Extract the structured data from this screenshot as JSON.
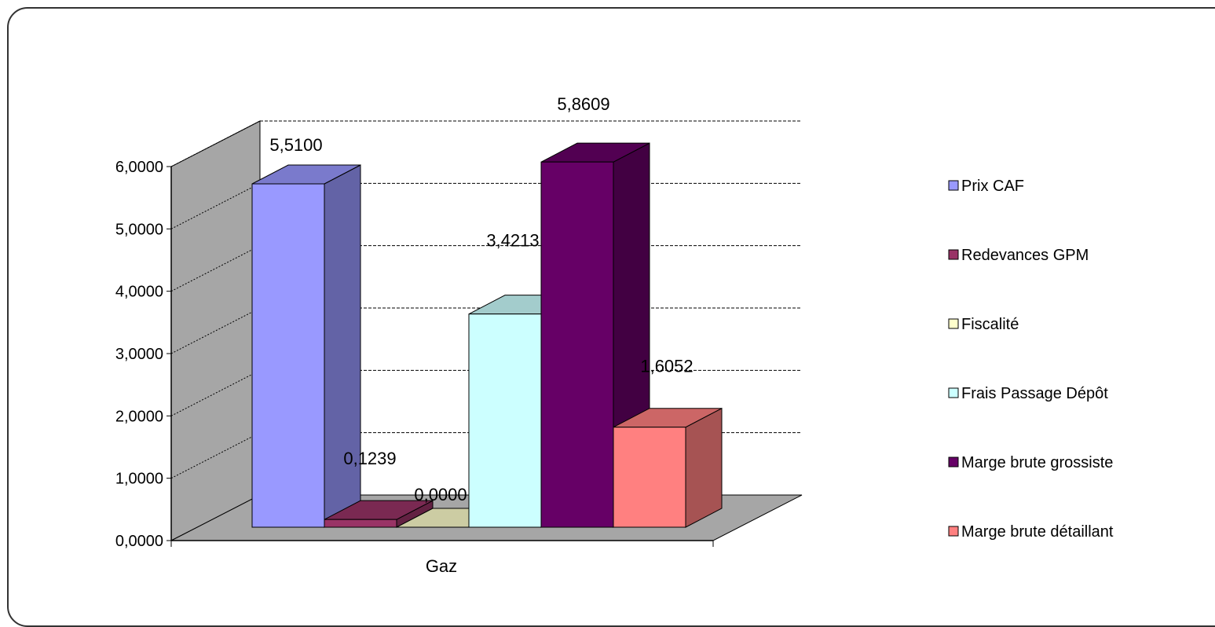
{
  "chart_data": {
    "type": "bar",
    "categories": [
      "Gaz"
    ],
    "ylim": [
      0,
      6
    ],
    "yticks": [
      "0,0000",
      "1,0000",
      "2,0000",
      "3,0000",
      "4,0000",
      "5,0000",
      "6,0000"
    ],
    "grid": true,
    "legend_position": "right",
    "series": [
      {
        "name": "Prix CAF",
        "values": [
          5.51
        ],
        "label": "5,5100",
        "color": "#9999ff"
      },
      {
        "name": "Redevances GPM",
        "values": [
          0.1239
        ],
        "label": "0,1239",
        "color": "#993366"
      },
      {
        "name": "Fiscalité",
        "values": [
          0.0
        ],
        "label": "0,0000",
        "color": "#ffffcc"
      },
      {
        "name": "Frais Passage Dépôt",
        "values": [
          3.4213
        ],
        "label": "3,4213",
        "color": "#ccffff"
      },
      {
        "name": "Marge brute grossiste",
        "values": [
          5.8609
        ],
        "label": "5,8609",
        "color": "#660066"
      },
      {
        "name": "Marge brute détaillant",
        "values": [
          1.6052
        ],
        "label": "1,6052",
        "color": "#ff8080"
      }
    ]
  }
}
